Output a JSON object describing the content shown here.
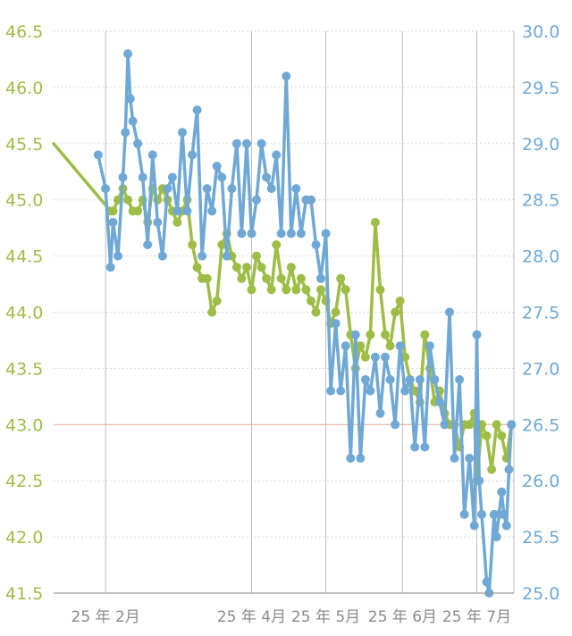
{
  "chart_data": {
    "type": "line",
    "title": "",
    "xlabel": "",
    "y_left": {
      "ticks": [
        "41.5",
        "42.0",
        "42.5",
        "43.0",
        "43.5",
        "44.0",
        "44.5",
        "45.0",
        "45.5",
        "46.0",
        "46.5"
      ],
      "min": 41.5,
      "max": 46.5,
      "color": "#9dbd46"
    },
    "y_right": {
      "ticks": [
        "25.0",
        "25.5",
        "26.0",
        "26.5",
        "27.0",
        "27.5",
        "28.0",
        "28.5",
        "29.0",
        "29.5",
        "30.0"
      ],
      "min": 25.0,
      "max": 30.0,
      "color": "#6fa8d4"
    },
    "x_domain": [
      "2025-01-11",
      "2025-07-16"
    ],
    "x_ticks": [
      {
        "label": "25 年 2月",
        "date": "2025-02-01"
      },
      {
        "label": "25 年 4月",
        "date": "2025-04-01"
      },
      {
        "label": "25 年 5月",
        "date": "2025-05-01"
      },
      {
        "label": "25 年 6月",
        "date": "2025-06-01"
      },
      {
        "label": "25 年 7月",
        "date": "2025-07-01"
      }
    ],
    "reference_line": {
      "axis": "left",
      "value": 43.0,
      "color": "#e8b79a"
    },
    "grid": true,
    "series": [
      {
        "axis": "left",
        "color": "#9dbd46",
        "points": [
          [
            "2025-01-11",
            45.5
          ],
          [
            "2025-02-03",
            44.9
          ],
          [
            "2025-02-04",
            44.9
          ],
          [
            "2025-02-06",
            45.0
          ],
          [
            "2025-02-08",
            45.1
          ],
          [
            "2025-02-10",
            45.0
          ],
          [
            "2025-02-12",
            44.9
          ],
          [
            "2025-02-14",
            44.9
          ],
          [
            "2025-02-16",
            45.0
          ],
          [
            "2025-02-18",
            44.8
          ],
          [
            "2025-02-20",
            45.1
          ],
          [
            "2025-02-22",
            45.0
          ],
          [
            "2025-02-24",
            45.1
          ],
          [
            "2025-02-26",
            45.0
          ],
          [
            "2025-02-28",
            44.9
          ],
          [
            "2025-03-02",
            44.8
          ],
          [
            "2025-03-04",
            44.9
          ],
          [
            "2025-03-06",
            45.0
          ],
          [
            "2025-03-08",
            44.6
          ],
          [
            "2025-03-10",
            44.4
          ],
          [
            "2025-03-12",
            44.3
          ],
          [
            "2025-03-14",
            44.3
          ],
          [
            "2025-03-16",
            44.0
          ],
          [
            "2025-03-18",
            44.1
          ],
          [
            "2025-03-20",
            44.6
          ],
          [
            "2025-03-22",
            44.7
          ],
          [
            "2025-03-24",
            44.5
          ],
          [
            "2025-03-26",
            44.4
          ],
          [
            "2025-03-28",
            44.3
          ],
          [
            "2025-03-30",
            44.4
          ],
          [
            "2025-04-01",
            44.2
          ],
          [
            "2025-04-03",
            44.5
          ],
          [
            "2025-04-05",
            44.4
          ],
          [
            "2025-04-07",
            44.3
          ],
          [
            "2025-04-09",
            44.2
          ],
          [
            "2025-04-11",
            44.6
          ],
          [
            "2025-04-13",
            44.3
          ],
          [
            "2025-04-15",
            44.2
          ],
          [
            "2025-04-17",
            44.4
          ],
          [
            "2025-04-19",
            44.2
          ],
          [
            "2025-04-21",
            44.3
          ],
          [
            "2025-04-23",
            44.2
          ],
          [
            "2025-04-25",
            44.1
          ],
          [
            "2025-04-27",
            44.0
          ],
          [
            "2025-04-29",
            44.2
          ],
          [
            "2025-05-01",
            44.1
          ],
          [
            "2025-05-03",
            43.9
          ],
          [
            "2025-05-05",
            44.0
          ],
          [
            "2025-05-07",
            44.3
          ],
          [
            "2025-05-09",
            44.2
          ],
          [
            "2025-05-11",
            43.8
          ],
          [
            "2025-05-13",
            43.5
          ],
          [
            "2025-05-15",
            43.7
          ],
          [
            "2025-05-17",
            43.6
          ],
          [
            "2025-05-19",
            43.8
          ],
          [
            "2025-05-21",
            44.8
          ],
          [
            "2025-05-23",
            44.2
          ],
          [
            "2025-05-25",
            43.8
          ],
          [
            "2025-05-27",
            43.7
          ],
          [
            "2025-05-29",
            44.0
          ],
          [
            "2025-05-31",
            44.1
          ],
          [
            "2025-06-02",
            43.6
          ],
          [
            "2025-06-04",
            43.4
          ],
          [
            "2025-06-06",
            43.3
          ],
          [
            "2025-06-08",
            43.2
          ],
          [
            "2025-06-10",
            43.8
          ],
          [
            "2025-06-12",
            43.5
          ],
          [
            "2025-06-14",
            43.2
          ],
          [
            "2025-06-16",
            43.3
          ],
          [
            "2025-06-18",
            43.1
          ],
          [
            "2025-06-20",
            43.0
          ],
          [
            "2025-06-22",
            43.0
          ],
          [
            "2025-06-24",
            42.8
          ],
          [
            "2025-06-26",
            43.0
          ],
          [
            "2025-06-28",
            43.0
          ],
          [
            "2025-06-30",
            43.1
          ],
          [
            "2025-07-01",
            42.5
          ],
          [
            "2025-07-03",
            43.0
          ],
          [
            "2025-07-05",
            42.9
          ],
          [
            "2025-07-07",
            42.6
          ],
          [
            "2025-07-09",
            43.0
          ],
          [
            "2025-07-11",
            42.9
          ],
          [
            "2025-07-13",
            42.7
          ],
          [
            "2025-07-15",
            43.0
          ]
        ]
      },
      {
        "axis": "right",
        "color": "#6fa8d4",
        "points": [
          [
            "2025-01-29",
            28.9
          ],
          [
            "2025-02-01",
            28.6
          ],
          [
            "2025-02-03",
            27.9
          ],
          [
            "2025-02-04",
            28.3
          ],
          [
            "2025-02-06",
            28.0
          ],
          [
            "2025-02-08",
            28.7
          ],
          [
            "2025-02-09",
            29.1
          ],
          [
            "2025-02-10",
            29.8
          ],
          [
            "2025-02-11",
            29.4
          ],
          [
            "2025-02-12",
            29.2
          ],
          [
            "2025-02-14",
            29.0
          ],
          [
            "2025-02-16",
            28.7
          ],
          [
            "2025-02-18",
            28.1
          ],
          [
            "2025-02-20",
            28.9
          ],
          [
            "2025-02-22",
            28.3
          ],
          [
            "2025-02-24",
            28.0
          ],
          [
            "2025-02-26",
            28.6
          ],
          [
            "2025-02-28",
            28.7
          ],
          [
            "2025-03-02",
            28.4
          ],
          [
            "2025-03-04",
            29.1
          ],
          [
            "2025-03-06",
            28.4
          ],
          [
            "2025-03-08",
            28.9
          ],
          [
            "2025-03-10",
            29.3
          ],
          [
            "2025-03-12",
            28.0
          ],
          [
            "2025-03-14",
            28.6
          ],
          [
            "2025-03-16",
            28.4
          ],
          [
            "2025-03-18",
            28.8
          ],
          [
            "2025-03-20",
            28.7
          ],
          [
            "2025-03-22",
            28.0
          ],
          [
            "2025-03-24",
            28.6
          ],
          [
            "2025-03-26",
            29.0
          ],
          [
            "2025-03-28",
            28.2
          ],
          [
            "2025-03-30",
            29.0
          ],
          [
            "2025-04-01",
            28.2
          ],
          [
            "2025-04-03",
            28.5
          ],
          [
            "2025-04-05",
            29.0
          ],
          [
            "2025-04-07",
            28.7
          ],
          [
            "2025-04-09",
            28.6
          ],
          [
            "2025-04-11",
            28.9
          ],
          [
            "2025-04-13",
            28.2
          ],
          [
            "2025-04-15",
            29.6
          ],
          [
            "2025-04-17",
            28.2
          ],
          [
            "2025-04-19",
            28.6
          ],
          [
            "2025-04-21",
            28.2
          ],
          [
            "2025-04-23",
            28.5
          ],
          [
            "2025-04-25",
            28.5
          ],
          [
            "2025-04-27",
            28.1
          ],
          [
            "2025-04-29",
            27.8
          ],
          [
            "2025-05-01",
            28.2
          ],
          [
            "2025-05-03",
            26.8
          ],
          [
            "2025-05-05",
            27.4
          ],
          [
            "2025-05-07",
            26.8
          ],
          [
            "2025-05-09",
            27.2
          ],
          [
            "2025-05-11",
            26.2
          ],
          [
            "2025-05-13",
            27.3
          ],
          [
            "2025-05-15",
            26.2
          ],
          [
            "2025-05-17",
            26.9
          ],
          [
            "2025-05-19",
            26.8
          ],
          [
            "2025-05-21",
            27.1
          ],
          [
            "2025-05-23",
            26.6
          ],
          [
            "2025-05-25",
            27.1
          ],
          [
            "2025-05-27",
            26.9
          ],
          [
            "2025-05-29",
            26.5
          ],
          [
            "2025-05-31",
            27.2
          ],
          [
            "2025-06-02",
            26.8
          ],
          [
            "2025-06-04",
            26.9
          ],
          [
            "2025-06-06",
            26.3
          ],
          [
            "2025-06-08",
            26.9
          ],
          [
            "2025-06-10",
            26.3
          ],
          [
            "2025-06-12",
            27.2
          ],
          [
            "2025-06-14",
            26.9
          ],
          [
            "2025-06-16",
            26.7
          ],
          [
            "2025-06-18",
            26.5
          ],
          [
            "2025-06-20",
            27.5
          ],
          [
            "2025-06-22",
            26.2
          ],
          [
            "2025-06-24",
            26.9
          ],
          [
            "2025-06-26",
            25.7
          ],
          [
            "2025-06-28",
            26.2
          ],
          [
            "2025-06-30",
            25.6
          ],
          [
            "2025-07-01",
            27.3
          ],
          [
            "2025-07-02",
            26.0
          ],
          [
            "2025-07-03",
            25.7
          ],
          [
            "2025-07-05",
            25.1
          ],
          [
            "2025-07-06",
            25.0
          ],
          [
            "2025-07-08",
            25.7
          ],
          [
            "2025-07-09",
            25.5
          ],
          [
            "2025-07-10",
            25.7
          ],
          [
            "2025-07-11",
            25.9
          ],
          [
            "2025-07-12",
            25.7
          ],
          [
            "2025-07-13",
            25.6
          ],
          [
            "2025-07-14",
            26.1
          ],
          [
            "2025-07-15",
            26.5
          ]
        ]
      }
    ]
  }
}
